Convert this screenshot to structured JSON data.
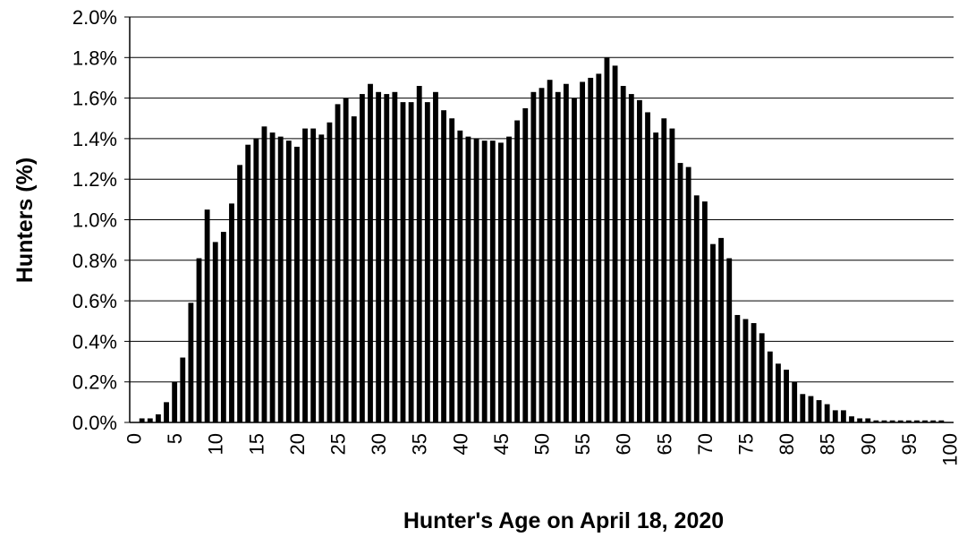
{
  "chart_data": {
    "type": "bar",
    "x_label": "Hunter's Age on April 18, 2020",
    "y_label": "Hunters (%)",
    "categories": [
      0,
      null,
      null,
      null,
      null,
      5,
      null,
      null,
      null,
      null,
      10,
      null,
      null,
      null,
      null,
      15,
      null,
      null,
      null,
      null,
      20,
      null,
      null,
      null,
      null,
      25,
      null,
      null,
      null,
      null,
      30,
      null,
      null,
      null,
      null,
      35,
      null,
      null,
      null,
      null,
      40,
      null,
      null,
      null,
      null,
      45,
      null,
      null,
      null,
      null,
      50,
      null,
      null,
      null,
      null,
      55,
      null,
      null,
      null,
      null,
      60,
      null,
      null,
      null,
      null,
      65,
      null,
      null,
      null,
      null,
      70,
      null,
      null,
      null,
      null,
      75,
      null,
      null,
      null,
      null,
      80,
      null,
      null,
      null,
      null,
      85,
      null,
      null,
      null,
      null,
      90,
      null,
      null,
      null,
      null,
      95,
      null,
      null,
      null,
      null,
      100
    ],
    "values": [
      0,
      0.02,
      0.02,
      0.04,
      0.1,
      0.2,
      0.32,
      0.59,
      0.81,
      1.05,
      0.89,
      0.94,
      1.08,
      1.27,
      1.37,
      1.4,
      1.46,
      1.43,
      1.41,
      1.39,
      1.36,
      1.45,
      1.45,
      1.42,
      1.48,
      1.57,
      1.6,
      1.51,
      1.62,
      1.67,
      1.63,
      1.62,
      1.63,
      1.58,
      1.58,
      1.66,
      1.58,
      1.63,
      1.54,
      1.5,
      1.44,
      1.41,
      1.4,
      1.39,
      1.39,
      1.38,
      1.41,
      1.49,
      1.55,
      1.63,
      1.65,
      1.69,
      1.63,
      1.67,
      1.6,
      1.68,
      1.7,
      1.72,
      1.8,
      1.76,
      1.66,
      1.62,
      1.59,
      1.53,
      1.43,
      1.5,
      1.45,
      1.28,
      1.26,
      1.12,
      1.09,
      0.88,
      0.91,
      0.81,
      0.53,
      0.51,
      0.49,
      0.44,
      0.35,
      0.29,
      0.26,
      0.2,
      0.14,
      0.13,
      0.11,
      0.09,
      0.06,
      0.06,
      0.03,
      0.02,
      0.02,
      0.01,
      0.01,
      0.01,
      0.01,
      0.01,
      0.01,
      0.01,
      0.01,
      0.01,
      0
    ],
    "color": "#000000",
    "ylim": [
      0,
      2.0
    ],
    "yticks": [
      {
        "value": 0,
        "label": "0.0%"
      },
      {
        "value": 0.2,
        "label": "0.2%"
      },
      {
        "value": 0.4,
        "label": "0.4%"
      },
      {
        "value": 0.6,
        "label": "0.6%"
      },
      {
        "value": 0.8,
        "label": "0.8%"
      },
      {
        "value": 1.0,
        "label": "1.0%"
      },
      {
        "value": 1.2,
        "label": "1.2%"
      },
      {
        "value": 1.4,
        "label": "1.4%"
      },
      {
        "value": 1.6,
        "label": "1.6%"
      },
      {
        "value": 1.8,
        "label": "1.8%"
      },
      {
        "value": 2.0,
        "label": "2.0%"
      }
    ],
    "grid": true
  }
}
